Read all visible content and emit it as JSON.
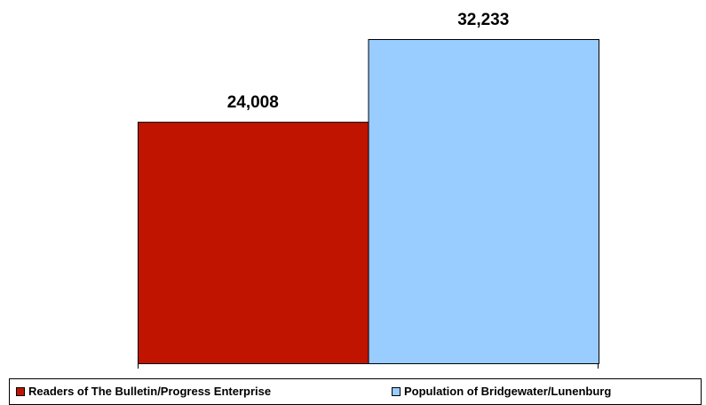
{
  "chart_data": {
    "type": "bar",
    "categories": [
      null
    ],
    "series": [
      {
        "name": "Readers of The Bulletin/Progress Enterprise",
        "color": "#c01400",
        "values": [
          24008
        ],
        "value_labels": [
          "24,008"
        ]
      },
      {
        "name": "Population of Bridgewater/Lunenburg",
        "color": "#99ccff",
        "values": [
          32233
        ],
        "value_labels": [
          "32,233"
        ]
      }
    ],
    "legend": "bottom"
  }
}
